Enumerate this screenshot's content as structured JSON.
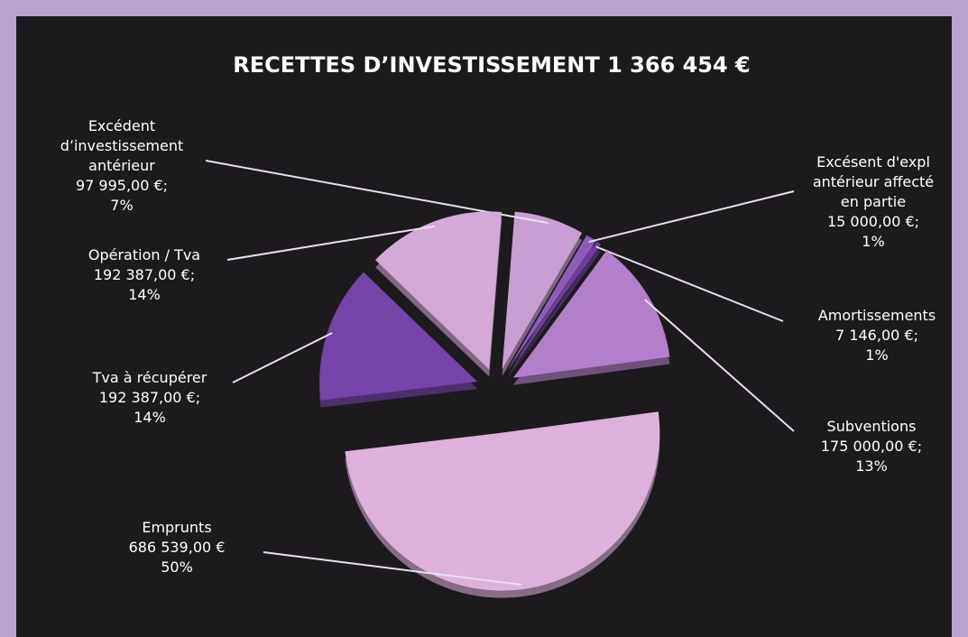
{
  "chart_data": {
    "type": "pie",
    "title": "RECETTES D’INVESTISSEMENT 1 366 454 €",
    "categories": [
      "Excédent\nd’investissement\nantérieur",
      "Excésent d'expl\nantérieur affecté\nen partie",
      "Amortissements",
      "Subventions",
      "Emprunts",
      "Tva à récupérer",
      "Opération / Tva"
    ],
    "values": [
      97995,
      15000,
      7146,
      175000,
      686539,
      192387,
      192387
    ],
    "value_labels": [
      "97 995,00 €;",
      "15 000,00 €;",
      "7 146,00 €;",
      "175 000,00 €;",
      "686 539,00 €",
      "192 387,00 €;",
      "192 387,00 €;"
    ],
    "percent_labels": [
      "7%",
      "1%",
      "1%",
      "13%",
      "50%",
      "14%",
      "14%"
    ],
    "colors": [
      "#c79fd2",
      "#8c5cba",
      "#6f3c9c",
      "#b27fcb",
      "#dcb2db",
      "#7444a8",
      "#d3a9d6"
    ]
  }
}
